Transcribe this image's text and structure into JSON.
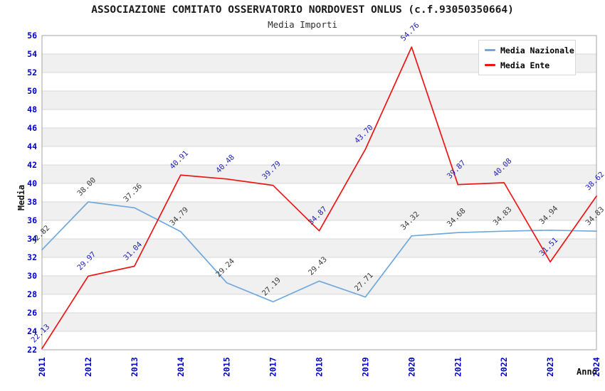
{
  "header": {
    "title": "ASSOCIAZIONE COMITATO OSSERVATORIO NORDOVEST ONLUS (c.f.93050350664)",
    "subtitle": "Media Importi"
  },
  "chart_data": {
    "type": "line",
    "title": "ASSOCIAZIONE COMITATO OSSERVATORIO NORDOVEST ONLUS (c.f.93050350664)",
    "subtitle": "Media Importi",
    "xlabel": "Anno",
    "ylabel": "Media",
    "x": [
      "2011",
      "2012",
      "2013",
      "2014",
      "2015",
      "2017",
      "2018",
      "2019",
      "2020",
      "2021",
      "2022",
      "2023",
      "2024"
    ],
    "series": [
      {
        "name": "Media Nazionale",
        "color": "#6fa8dc",
        "label_color": "#3a3a3a",
        "values": [
          32.82,
          38.0,
          37.36,
          34.79,
          29.24,
          27.19,
          29.43,
          27.71,
          34.32,
          34.68,
          34.83,
          34.94,
          34.83
        ]
      },
      {
        "name": "Media Ente",
        "color": "#ee1414",
        "label_color": "#2222b2",
        "values": [
          22.13,
          29.97,
          31.04,
          40.91,
          40.48,
          39.79,
          34.87,
          43.7,
          54.76,
          39.87,
          40.08,
          31.51,
          38.62
        ]
      }
    ],
    "ylim": [
      22,
      56
    ],
    "ytick_step": 2,
    "grid": true,
    "band_color": "#f0f0f0",
    "gridline_color": "#d9d9d9",
    "border_color": "#a6a6a6",
    "tick_color": "#0000cd",
    "legend_position": "top-right"
  }
}
